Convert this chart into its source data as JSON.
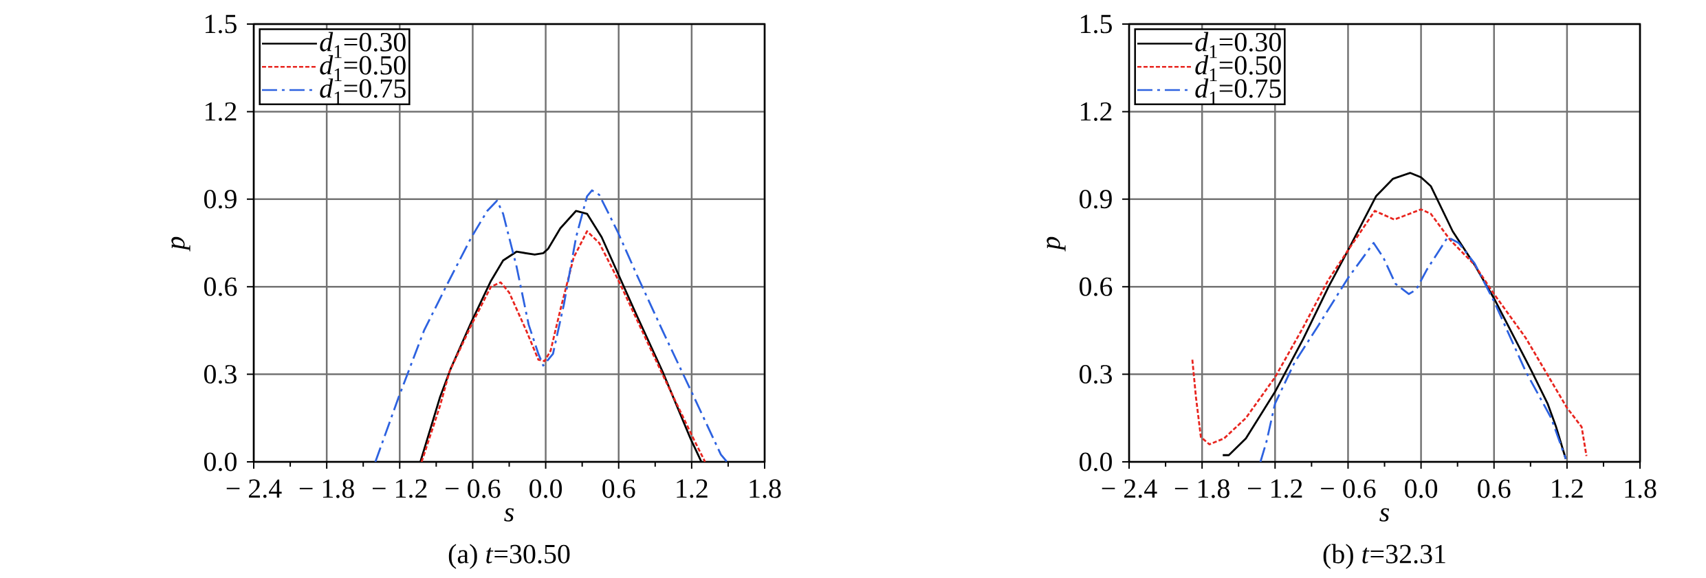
{
  "chart_data": [
    {
      "type": "line",
      "title": "(a)  *t*=30.50",
      "xlabel": "*s*",
      "ylabel": "*p*",
      "xlim": [
        -2.4,
        1.8
      ],
      "ylim": [
        0,
        1.5
      ],
      "xticks": [
        {
          "value": -2.4,
          "label": "− 2.4"
        },
        {
          "value": -1.8,
          "label": "− 1.8"
        },
        {
          "value": -1.2,
          "label": "− 1.2"
        },
        {
          "value": -0.6,
          "label": "− 0.6"
        },
        {
          "value": 0,
          "label": "0.0"
        },
        {
          "value": 0.6,
          "label": "0.6"
        },
        {
          "value": 1.2,
          "label": "1.2"
        },
        {
          "value": 1.8,
          "label": "1.8"
        }
      ],
      "yticks": [
        {
          "value": 0,
          "label": "0.0"
        },
        {
          "value": 0.3,
          "label": "0.3"
        },
        {
          "value": 0.6,
          "label": "0.6"
        },
        {
          "value": 0.9,
          "label": "0.9"
        },
        {
          "value": 1.2,
          "label": "1.2"
        },
        {
          "value": 1.5,
          "label": "1.5"
        }
      ],
      "grid": true,
      "legend": "top left",
      "series": [
        {
          "name": "*d*$_{1}$=0.30",
          "color": "#000000",
          "line_style": "solid",
          "x": [
            -1.03,
            -0.87,
            -0.78,
            -0.61,
            -0.45,
            -0.35,
            -0.24,
            -0.09,
            -0.02,
            0.02,
            0.12,
            0.25,
            0.34,
            0.46,
            0.6,
            0.75,
            0.96,
            1.19,
            1.28
          ],
          "values": [
            0,
            0.22,
            0.32,
            0.48,
            0.62,
            0.69,
            0.72,
            0.71,
            0.715,
            0.73,
            0.8,
            0.86,
            0.85,
            0.77,
            0.64,
            0.5,
            0.31,
            0.08,
            0
          ]
        },
        {
          "name": "*d*$_{1}$=0.50",
          "color": "#e8251f",
          "line_style": "dashed",
          "x": [
            -1.02,
            -0.87,
            -0.79,
            -0.61,
            -0.45,
            -0.37,
            -0.3,
            -0.16,
            -0.06,
            -0.01,
            0.04,
            0.12,
            0.23,
            0.34,
            0.44,
            0.6,
            0.96,
            1.22,
            1.31
          ],
          "values": [
            0,
            0.19,
            0.31,
            0.47,
            0.6,
            0.615,
            0.58,
            0.45,
            0.35,
            0.345,
            0.38,
            0.52,
            0.7,
            0.79,
            0.75,
            0.62,
            0.3,
            0.075,
            0
          ]
        },
        {
          "name": "*d*$_{1}$=0.75",
          "color": "#2d62e0",
          "line_style": "dashdot",
          "x": [
            -1.4,
            -1.21,
            -1.0,
            -0.82,
            -0.61,
            -0.48,
            -0.4,
            -0.35,
            -0.24,
            -0.14,
            -0.06,
            -0.02,
            0.06,
            0.15,
            0.25,
            0.34,
            0.38,
            0.44,
            0.59,
            0.75,
            0.96,
            1.21,
            1.44,
            1.49
          ],
          "values": [
            0,
            0.22,
            0.45,
            0.6,
            0.77,
            0.86,
            0.895,
            0.85,
            0.67,
            0.47,
            0.37,
            0.33,
            0.37,
            0.54,
            0.77,
            0.91,
            0.93,
            0.915,
            0.79,
            0.64,
            0.45,
            0.23,
            0.025,
            0
          ]
        }
      ]
    },
    {
      "type": "line",
      "title": "(b)  *t*=32.31",
      "xlabel": "*s*",
      "ylabel": "*p*",
      "xlim": [
        -2.4,
        1.8
      ],
      "ylim": [
        0,
        1.5
      ],
      "xticks": [
        {
          "value": -2.4,
          "label": "− 2.4"
        },
        {
          "value": -1.8,
          "label": "− 1.8"
        },
        {
          "value": -1.2,
          "label": "− 1.2"
        },
        {
          "value": -0.6,
          "label": "− 0.6"
        },
        {
          "value": 0,
          "label": "0.0"
        },
        {
          "value": 0.6,
          "label": "0.6"
        },
        {
          "value": 1.2,
          "label": "1.2"
        },
        {
          "value": 1.8,
          "label": "1.8"
        }
      ],
      "yticks": [
        {
          "value": 0,
          "label": "0.0"
        },
        {
          "value": 0.3,
          "label": "0.3"
        },
        {
          "value": 0.6,
          "label": "0.6"
        },
        {
          "value": 0.9,
          "label": "0.9"
        },
        {
          "value": 1.2,
          "label": "1.2"
        },
        {
          "value": 1.5,
          "label": "1.5"
        }
      ],
      "grid": true,
      "legend": "top left",
      "series": [
        {
          "name": "*d*$_{1}$=0.30",
          "color": "#000000",
          "line_style": "solid",
          "x": [
            -1.63,
            -1.58,
            -1.44,
            -1.2,
            -0.97,
            -0.76,
            -0.6,
            -0.37,
            -0.23,
            -0.09,
            0,
            0.08,
            0.26,
            0.44,
            0.6,
            0.91,
            1.04,
            1.11,
            1.19
          ],
          "values": [
            0.023,
            0.023,
            0.08,
            0.24,
            0.42,
            0.6,
            0.725,
            0.91,
            0.97,
            0.99,
            0.975,
            0.945,
            0.79,
            0.675,
            0.56,
            0.31,
            0.2,
            0.12,
            0.01
          ]
        },
        {
          "name": "*d*$_{1}$=0.50",
          "color": "#e8251f",
          "line_style": "dashed",
          "x": [
            -1.88,
            -1.85,
            -1.81,
            -1.74,
            -1.62,
            -1.44,
            -1.2,
            -0.97,
            -0.76,
            -0.6,
            -0.38,
            -0.22,
            0,
            0.08,
            0.24,
            0.44,
            0.6,
            0.86,
            1.2,
            1.32,
            1.36
          ],
          "values": [
            0.35,
            0.22,
            0.085,
            0.06,
            0.08,
            0.15,
            0.29,
            0.46,
            0.625,
            0.725,
            0.86,
            0.83,
            0.865,
            0.85,
            0.76,
            0.675,
            0.575,
            0.425,
            0.185,
            0.12,
            0.02
          ]
        },
        {
          "name": "*d*$_{1}$=0.75",
          "color": "#2d62e0",
          "line_style": "dashdot",
          "x": [
            -1.32,
            -1.27,
            -1.2,
            -1.04,
            -0.84,
            -0.6,
            -0.39,
            -0.31,
            -0.21,
            -0.1,
            -0.04,
            0.05,
            0.22,
            0.31,
            0.44,
            0.6,
            0.86,
            1.07,
            1.19
          ],
          "values": [
            0,
            0.07,
            0.2,
            0.34,
            0.47,
            0.63,
            0.75,
            0.7,
            0.61,
            0.575,
            0.59,
            0.66,
            0.77,
            0.75,
            0.68,
            0.55,
            0.31,
            0.15,
            0.01
          ]
        }
      ]
    }
  ]
}
